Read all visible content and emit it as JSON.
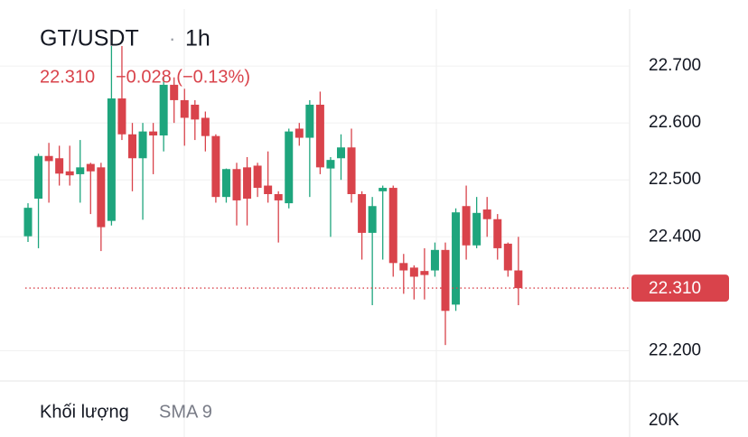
{
  "chart_data": {
    "type": "candlestick",
    "title": "GT/USDT",
    "separator": "·",
    "interval": "1h",
    "price_label": "22.310",
    "change_label": "−0.028 (−0.13%)",
    "up_color": "#1ea57d",
    "down_color": "#d9434b",
    "grid": true,
    "ylim": [
      22.15,
      22.8
    ],
    "yticks": [
      {
        "value": 22.7,
        "label": "22.700"
      },
      {
        "value": 22.6,
        "label": "22.600"
      },
      {
        "value": 22.5,
        "label": "22.500"
      },
      {
        "value": 22.4,
        "label": "22.400"
      },
      {
        "value": 22.2,
        "label": "22.200"
      }
    ],
    "last_price": {
      "value": 22.31,
      "label": "22.310"
    },
    "open": [
      22.401,
      22.467,
      22.542,
      22.538,
      22.515,
      22.51,
      22.528,
      22.522,
      22.428,
      22.643,
      22.58,
      22.538,
      22.585,
      22.578,
      22.667,
      22.64,
      22.632,
      22.609,
      22.577,
      22.47,
      22.519,
      22.522,
      22.525,
      22.49,
      22.475,
      22.459,
      22.59,
      22.574,
      22.632,
      22.52,
      22.538,
      22.557,
      22.475,
      22.407,
      22.48,
      22.486,
      22.354,
      22.346,
      22.34,
      22.341,
      22.377,
      22.281,
      22.454,
      22.385,
      22.448,
      22.431,
      22.388,
      22.341
    ],
    "high": [
      22.459,
      22.546,
      22.565,
      22.56,
      22.56,
      22.57,
      22.53,
      22.53,
      22.735,
      22.735,
      22.6,
      22.6,
      22.6,
      22.68,
      22.68,
      22.66,
      22.64,
      22.62,
      22.58,
      22.52,
      22.53,
      22.54,
      22.53,
      22.55,
      22.48,
      22.59,
      22.6,
      22.64,
      22.655,
      22.54,
      22.58,
      22.59,
      22.48,
      22.47,
      22.49,
      22.49,
      22.37,
      22.35,
      22.38,
      22.39,
      22.39,
      22.45,
      22.49,
      22.47,
      22.47,
      22.44,
      22.39,
      22.4
    ],
    "low": [
      22.391,
      22.38,
      22.46,
      22.49,
      22.49,
      22.46,
      22.44,
      22.375,
      22.42,
      22.57,
      22.48,
      22.43,
      22.51,
      22.55,
      22.6,
      22.56,
      22.57,
      22.55,
      22.46,
      22.46,
      22.42,
      22.42,
      22.47,
      22.46,
      22.39,
      22.45,
      22.56,
      22.47,
      22.51,
      22.4,
      22.5,
      22.46,
      22.36,
      22.28,
      22.36,
      22.33,
      22.3,
      22.29,
      22.29,
      22.33,
      22.21,
      22.27,
      22.36,
      22.38,
      22.4,
      22.36,
      22.33,
      22.28
    ],
    "close": [
      22.451,
      22.542,
      22.533,
      22.511,
      22.508,
      22.522,
      22.515,
      22.417,
      22.643,
      22.58,
      22.538,
      22.585,
      22.578,
      22.667,
      22.64,
      22.609,
      22.606,
      22.577,
      22.47,
      22.519,
      22.464,
      22.467,
      22.486,
      22.475,
      22.464,
      22.585,
      22.574,
      22.632,
      22.522,
      22.535,
      22.557,
      22.475,
      22.407,
      22.454,
      22.486,
      22.354,
      22.341,
      22.33,
      22.333,
      22.377,
      22.27,
      22.443,
      22.385,
      22.442,
      22.431,
      22.38,
      22.341,
      22.31
    ],
    "volume": {
      "title": "Khối lượng",
      "indicator": "SMA 9",
      "tick_label": "20K"
    }
  }
}
